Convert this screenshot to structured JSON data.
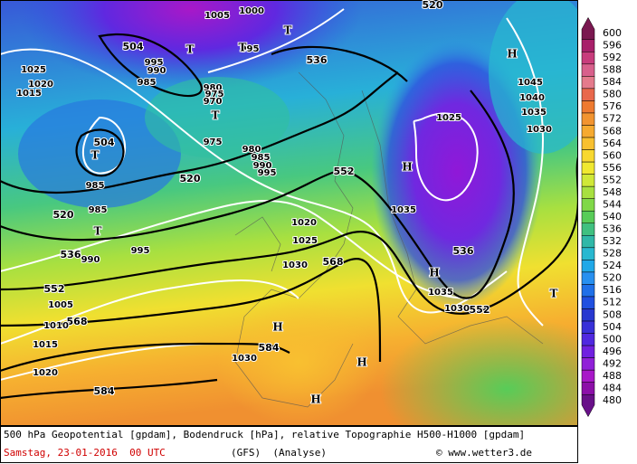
{
  "legend": {
    "levels": [
      {
        "value": 600,
        "color": "#7a1850"
      },
      {
        "value": 596,
        "color": "#a8206a"
      },
      {
        "value": 592,
        "color": "#c83c7c"
      },
      {
        "value": 588,
        "color": "#d8608c"
      },
      {
        "value": 584,
        "color": "#e47a8c"
      },
      {
        "value": 580,
        "color": "#e8684c"
      },
      {
        "value": 576,
        "color": "#ee7a30"
      },
      {
        "value": 572,
        "color": "#f29430"
      },
      {
        "value": 568,
        "color": "#f6aa30"
      },
      {
        "value": 564,
        "color": "#f8c030"
      },
      {
        "value": 560,
        "color": "#f8d830"
      },
      {
        "value": 556,
        "color": "#f0e830"
      },
      {
        "value": 552,
        "color": "#d0e838"
      },
      {
        "value": 548,
        "color": "#a8e040"
      },
      {
        "value": 544,
        "color": "#80d848"
      },
      {
        "value": 540,
        "color": "#58cc58"
      },
      {
        "value": 536,
        "color": "#40c080"
      },
      {
        "value": 532,
        "color": "#30b8a8"
      },
      {
        "value": 528,
        "color": "#28b8d0"
      },
      {
        "value": 524,
        "color": "#20a8e8"
      },
      {
        "value": 520,
        "color": "#2890f0"
      },
      {
        "value": 516,
        "color": "#2070e8"
      },
      {
        "value": 512,
        "color": "#2050e0"
      },
      {
        "value": 508,
        "color": "#2838d0"
      },
      {
        "value": 504,
        "color": "#3830d8"
      },
      {
        "value": 500,
        "color": "#5028e0"
      },
      {
        "value": 496,
        "color": "#7020e0"
      },
      {
        "value": 492,
        "color": "#9020d8"
      },
      {
        "value": 488,
        "color": "#a818c8"
      },
      {
        "value": 484,
        "color": "#8c10a8"
      },
      {
        "value": 480,
        "color": "#681088"
      }
    ]
  },
  "map": {
    "labels": [
      "504",
      "504",
      "520",
      "520",
      "536",
      "536",
      "552",
      "552",
      "552",
      "536",
      "568",
      "568",
      "584",
      "584",
      "520",
      "1025",
      "1020",
      "1015",
      "995",
      "990",
      "985",
      "980",
      "975",
      "970",
      "975",
      "980",
      "985",
      "990",
      "995",
      "985",
      "985",
      "995",
      "990",
      "1020",
      "1025",
      "1030",
      "1025",
      "1035",
      "1040",
      "1045",
      "1035",
      "1030",
      "1035",
      "1030",
      "1015",
      "1020",
      "1030",
      "1010",
      "1005",
      "1005",
      "1000",
      "995",
      "T",
      "T",
      "T",
      "T",
      "T",
      "T",
      "T",
      "H",
      "H",
      "H",
      "H",
      "H",
      "H"
    ]
  },
  "footer": {
    "line1": "500 hPa Geopotential [gpdam], Bodendruck [hPa], relative Topographie H500-H1000 [gpdam]",
    "date": "Samstag, 23-01-2016  00 UTC",
    "model": "(GFS)  (Analyse)",
    "credit": "© www.wetter3.de"
  }
}
